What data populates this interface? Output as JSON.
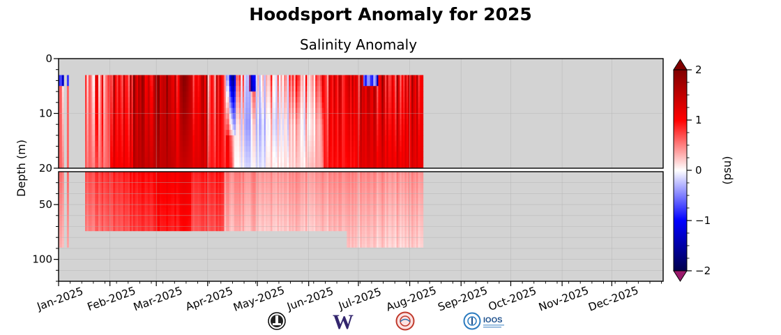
{
  "figure": {
    "title": "Hoodsport Anomaly for 2025"
  },
  "chart_data": {
    "type": "heatmap",
    "title": "Salinity Anomaly",
    "ylabel": "Depth (m)",
    "xlabel": "",
    "x_ticks": [
      "Jan-2025",
      "Feb-2025",
      "Mar-2025",
      "Apr-2025",
      "May-2025",
      "Jun-2025",
      "Jul-2025",
      "Aug-2025",
      "Sep-2025",
      "Oct-2025",
      "Nov-2025",
      "Dec-2025"
    ],
    "x_tick_days": [
      0,
      31,
      59,
      90,
      120,
      151,
      181,
      212,
      243,
      273,
      304,
      334
    ],
    "x_range_days": [
      0,
      365
    ],
    "upper_panel": {
      "ylim": [
        0,
        20
      ],
      "yticks": [
        "0",
        "10",
        "20"
      ],
      "ytick_values": [
        0,
        10,
        20
      ]
    },
    "lower_panel": {
      "ylim": [
        20,
        120
      ],
      "yticks": [
        "50",
        "100"
      ],
      "ytick_values": [
        50,
        100
      ]
    },
    "grid": true,
    "data_days": [
      0,
      220
    ],
    "data_depth": [
      3,
      87
    ],
    "colorbar": {
      "label": "(psu)",
      "range": [
        -2,
        2
      ],
      "ticks": [
        "2",
        "1",
        "0",
        "−1",
        "−2"
      ],
      "tick_values": [
        2,
        1,
        0,
        -1,
        -2
      ],
      "extend": "both",
      "colormap": "seismic"
    },
    "colors": {
      "missing": "#d3d3d3",
      "positive": "#ff0000",
      "negative": "#0000ff",
      "over": "#800000",
      "under": "#9b1a6c"
    }
  },
  "logos": [
    {
      "name": "lighthouse-logo-icon"
    },
    {
      "name": "uw-w-logo-icon",
      "text": "W"
    },
    {
      "name": "nanoos-seal-logo-icon"
    },
    {
      "name": "ioos-logo-icon",
      "text": "IOOS"
    }
  ]
}
